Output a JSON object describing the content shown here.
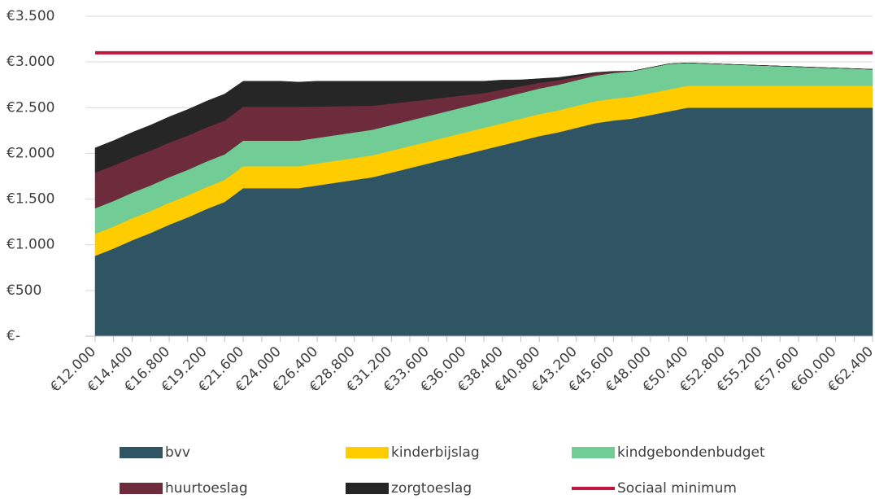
{
  "chart_data": {
    "type": "stacked_area",
    "categories": [
      "€12.000",
      null,
      "€14.400",
      null,
      "€16.800",
      null,
      "€19.200",
      null,
      "€21.600",
      null,
      "€24.000",
      null,
      "€26.400",
      null,
      "€28.800",
      null,
      "€31.200",
      null,
      "€33.600",
      null,
      "€36.000",
      null,
      "€38.400",
      null,
      "€40.800",
      null,
      "€43.200",
      null,
      "€45.600",
      null,
      "€48.000",
      null,
      "€50.400",
      null,
      "€52.800",
      null,
      "€55.200",
      null,
      "€57.600",
      null,
      "€60.000",
      null,
      "€62.400"
    ],
    "ylim": [
      0,
      3500
    ],
    "yticks": [
      {
        "value": 0,
        "label": "€-"
      },
      {
        "value": 500,
        "label": "€500"
      },
      {
        "value": 1000,
        "label": "€1.000"
      },
      {
        "value": 1500,
        "label": "€1.500"
      },
      {
        "value": 2000,
        "label": "€2.000"
      },
      {
        "value": 2500,
        "label": "€2.500"
      },
      {
        "value": 3000,
        "label": "€3.000"
      },
      {
        "value": 3500,
        "label": "€3.500"
      }
    ],
    "grid": true,
    "series": [
      {
        "name": "bvv",
        "color": "#2f5464",
        "values": [
          880,
          960,
          1050,
          1130,
          1220,
          1300,
          1390,
          1470,
          1620,
          1620,
          1620,
          1620,
          1650,
          1680,
          1710,
          1740,
          1790,
          1840,
          1890,
          1940,
          1990,
          2040,
          2090,
          2140,
          2190,
          2230,
          2280,
          2330,
          2360,
          2380,
          2420,
          2460,
          2500,
          2500,
          2500,
          2500,
          2500,
          2500,
          2500,
          2500,
          2500,
          2500,
          2500
        ]
      },
      {
        "name": "kinderbijslag",
        "color": "#ffcc00",
        "values": [
          240,
          240,
          240,
          240,
          240,
          240,
          240,
          240,
          240,
          240,
          240,
          240,
          240,
          240,
          240,
          240,
          240,
          240,
          240,
          240,
          240,
          240,
          240,
          240,
          240,
          240,
          240,
          240,
          240,
          240,
          240,
          240,
          240,
          240,
          240,
          240,
          240,
          240,
          240,
          240,
          240,
          240,
          240
        ]
      },
      {
        "name": "kindgebondenbudget",
        "color": "#72cc96",
        "values": [
          280,
          280,
          280,
          280,
          280,
          280,
          280,
          280,
          280,
          280,
          280,
          280,
          280,
          280,
          280,
          280,
          280,
          280,
          280,
          280,
          280,
          280,
          280,
          280,
          280,
          280,
          280,
          280,
          280,
          280,
          280,
          280,
          250,
          243,
          236,
          229,
          222,
          215,
          208,
          201,
          194,
          187,
          180
        ]
      },
      {
        "name": "huurtoeslag",
        "color": "#6e2b3b",
        "values": [
          390,
          387,
          384,
          381,
          378,
          375,
          372,
          370,
          370,
          370,
          370,
          370,
          343,
          316,
          289,
          262,
          235,
          208,
          181,
          154,
          127,
          100,
          88,
          75,
          63,
          50,
          38,
          25,
          13,
          0,
          0,
          0,
          0,
          0,
          0,
          0,
          0,
          0,
          0,
          0,
          0,
          0,
          0
        ]
      },
      {
        "name": "zorgtoeslag",
        "color": "#262626",
        "values": [
          270,
          273,
          276,
          279,
          282,
          285,
          288,
          290,
          280,
          280,
          280,
          270,
          277,
          274,
          271,
          268,
          245,
          222,
          199,
          176,
          153,
          130,
          105,
          70,
          45,
          30,
          20,
          10,
          5,
          0,
          0,
          0,
          0,
          0,
          0,
          0,
          0,
          0,
          0,
          0,
          0,
          0,
          0
        ]
      },
      {
        "name": "Sociaal minimum",
        "color": "#c0143c",
        "type": "line",
        "values": [
          3100,
          3100,
          3100,
          3100,
          3100,
          3100,
          3100,
          3100,
          3100,
          3100,
          3100,
          3100,
          3100,
          3100,
          3100,
          3100,
          3100,
          3100,
          3100,
          3100,
          3100,
          3100,
          3100,
          3100,
          3100,
          3100,
          3100,
          3100,
          3100,
          3100,
          3100,
          3100,
          3100,
          3100,
          3100,
          3100,
          3100,
          3100,
          3100,
          3100,
          3100,
          3100,
          3100
        ]
      }
    ]
  }
}
